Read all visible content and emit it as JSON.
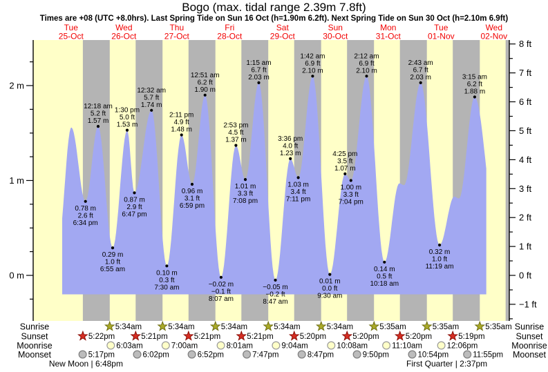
{
  "header": {
    "title": "Bogo (max. tidal range 2.39m 7.8ft)",
    "subtitle": "Times are +08 (UTC +8.0hrs). Last Spring Tide on Sun 16 Oct (h=1.90m 6.2ft). Next Spring Tide on Sun 30 Oct (h=2.10m 6.9ft)"
  },
  "days": [
    {
      "name": "Tue",
      "date": "25-Oct"
    },
    {
      "name": "Wed",
      "date": "26-Oct"
    },
    {
      "name": "Thu",
      "date": "27-Oct"
    },
    {
      "name": "Fri",
      "date": "28-Oct"
    },
    {
      "name": "Sat",
      "date": "29-Oct"
    },
    {
      "name": "Sun",
      "date": "30-Oct"
    },
    {
      "name": "Mon",
      "date": "31-Oct"
    },
    {
      "name": "Tue",
      "date": "01-Nov"
    },
    {
      "name": "Wed",
      "date": "02-Nov"
    }
  ],
  "chart_data": {
    "type": "area",
    "title": "Tide height curve, 25 Oct - 02 Nov",
    "x_unit": "days since 25 Oct 00:00 local (+08)",
    "y_axis_left": {
      "unit": "m",
      "ticks": [
        {
          "v": 2,
          "label": "2 m"
        },
        {
          "v": 1,
          "label": "1 m"
        },
        {
          "v": 0,
          "label": "0 m"
        }
      ],
      "minor_step": 0.25
    },
    "y_axis_right": {
      "unit": "ft",
      "tick_values": [
        8,
        7,
        6,
        5,
        4,
        3,
        2,
        1,
        0,
        -1
      ],
      "labels": [
        "8 ft",
        "7 ft",
        "6 ft",
        "5 ft",
        "4 ft",
        "3 ft",
        "2 ft",
        "1 ft",
        "0 ft",
        "−1 ft"
      ],
      "minor_step": 0.5
    },
    "tide_events": [
      {
        "date": "25-Oct",
        "type": "low",
        "t": 0.7736,
        "height_m": 0.78,
        "label_m": "0.78 m",
        "label_ft": "2.6 ft",
        "label_time": "6:34 pm"
      },
      {
        "date": "26-Oct",
        "type": "high",
        "t": 1.0125,
        "height_m": 1.57,
        "label_m": "1.57 m",
        "label_ft": "5.2 ft",
        "label_time": "12:18 am"
      },
      {
        "date": "26-Oct",
        "type": "low",
        "t": 1.2882,
        "height_m": 0.29,
        "label_m": "0.29 m",
        "label_ft": "1.0 ft",
        "label_time": "6:55 am"
      },
      {
        "date": "26-Oct",
        "type": "high",
        "t": 1.5625,
        "height_m": 1.53,
        "label_m": "1.53 m",
        "label_ft": "5.0 ft",
        "label_time": "1:30 pm"
      },
      {
        "date": "26-Oct",
        "type": "low",
        "t": 1.6993,
        "height_m": 0.87,
        "label_m": "0.87 m",
        "label_ft": "2.9 ft",
        "label_time": "6:47 pm"
      },
      {
        "date": "27-Oct",
        "type": "high",
        "t": 2.0222,
        "height_m": 1.74,
        "label_m": "1.74 m",
        "label_ft": "5.7 ft",
        "label_time": "12:32 am"
      },
      {
        "date": "27-Oct",
        "type": "low",
        "t": 2.3125,
        "height_m": 0.1,
        "label_m": "0.10 m",
        "label_ft": "0.3 ft",
        "label_time": "7:30 am"
      },
      {
        "date": "27-Oct",
        "type": "high",
        "t": 2.591,
        "height_m": 1.48,
        "label_m": "1.48 m",
        "label_ft": "4.9 ft",
        "label_time": "2:11 pm"
      },
      {
        "date": "27-Oct",
        "type": "low",
        "t": 2.791,
        "height_m": 0.96,
        "label_m": "0.96 m",
        "label_ft": "3.1 ft",
        "label_time": "6:59 pm"
      },
      {
        "date": "28-Oct",
        "type": "high",
        "t": 3.0354,
        "height_m": 1.9,
        "label_m": "1.90 m",
        "label_ft": "6.2 ft",
        "label_time": "12:51 am"
      },
      {
        "date": "28-Oct",
        "type": "low",
        "t": 3.3382,
        "height_m": -0.02,
        "label_m": "−0.02 m",
        "label_ft": "−0.1 ft",
        "label_time": "8:07 am"
      },
      {
        "date": "28-Oct",
        "type": "high",
        "t": 3.6201,
        "height_m": 1.37,
        "label_m": "1.37 m",
        "label_ft": "4.5 ft",
        "label_time": "2:53 pm"
      },
      {
        "date": "28-Oct",
        "type": "low",
        "t": 3.7972,
        "height_m": 1.01,
        "label_m": "1.01 m",
        "label_ft": "3.3 ft",
        "label_time": "7:08 pm"
      },
      {
        "date": "29-Oct",
        "type": "high",
        "t": 4.0521,
        "height_m": 2.03,
        "label_m": "2.03 m",
        "label_ft": "6.7 ft",
        "label_time": "1:15 am"
      },
      {
        "date": "29-Oct",
        "type": "low",
        "t": 4.366,
        "height_m": -0.05,
        "label_m": "−0.05 m",
        "label_ft": "−0.2 ft",
        "label_time": "8:47 am"
      },
      {
        "date": "29-Oct",
        "type": "high",
        "t": 4.65,
        "height_m": 1.23,
        "label_m": "1.23 m",
        "label_ft": "4.0 ft",
        "label_time": "3:36 pm"
      },
      {
        "date": "29-Oct",
        "type": "low",
        "t": 4.7993,
        "height_m": 1.03,
        "label_m": "1.03 m",
        "label_ft": "3.4 ft",
        "label_time": "7:11 pm"
      },
      {
        "date": "30-Oct",
        "type": "high",
        "t": 5.0708,
        "height_m": 2.1,
        "label_m": "2.10 m",
        "label_ft": "6.9 ft",
        "label_time": "1:42 am"
      },
      {
        "date": "30-Oct",
        "type": "low",
        "t": 5.3958,
        "height_m": 0.01,
        "label_m": "0.01 m",
        "label_ft": "0.0 ft",
        "label_time": "9:30 am"
      },
      {
        "date": "30-Oct",
        "type": "high",
        "t": 5.684,
        "height_m": 1.07,
        "label_m": "1.07 m",
        "label_ft": "3.5 ft",
        "label_time": "4:25 pm"
      },
      {
        "date": "30-Oct",
        "type": "low",
        "t": 5.7944,
        "height_m": 1.0,
        "label_m": "1.00 m",
        "label_ft": "3.3 ft",
        "label_time": "7:04 pm"
      },
      {
        "date": "31-Oct",
        "type": "high",
        "t": 6.0917,
        "height_m": 2.1,
        "label_m": "2.10 m",
        "label_ft": "6.9 ft",
        "label_time": "2:12 am"
      },
      {
        "date": "31-Oct",
        "type": "low",
        "t": 6.4292,
        "height_m": 0.14,
        "label_m": "0.14 m",
        "label_ft": "0.5 ft",
        "label_time": "10:18 am"
      },
      {
        "date": "01-Nov",
        "type": "high",
        "t": 7.1132,
        "height_m": 2.03,
        "label_m": "2.03 m",
        "label_ft": "6.7 ft",
        "label_time": "2:43 am"
      },
      {
        "date": "01-Nov",
        "type": "low",
        "t": 7.4715,
        "height_m": 0.32,
        "label_m": "0.32 m",
        "label_ft": "1.0 ft",
        "label_time": "11:19 am"
      },
      {
        "date": "02-Nov",
        "type": "high",
        "t": 8.1354,
        "height_m": 1.88,
        "label_m": "1.88 m",
        "label_ft": "6.2 ft",
        "label_time": "3:15 am"
      }
    ],
    "unlabeled_curve_points": [
      {
        "t": 0.255,
        "m": 0.33
      },
      {
        "t": 0.506,
        "m": 1.56
      },
      {
        "t": 6.71,
        "m": 0.97
      },
      {
        "t": 6.8,
        "m": 0.95
      },
      {
        "t": 7.75,
        "m": 0.83
      },
      {
        "t": 7.84,
        "m": 0.81
      },
      {
        "t": 8.55,
        "m": 0.5
      }
    ],
    "curve_t_range": [
      0.333,
      8.355
    ],
    "baseline_m": -0.2,
    "night_bands_t": [
      [
        0.7236,
        1.2319
      ],
      [
        1.7229,
        2.2319
      ],
      [
        2.7229,
        3.2319
      ],
      [
        3.7229,
        4.2319
      ],
      [
        4.7222,
        5.2319
      ],
      [
        5.7222,
        6.2326
      ],
      [
        6.7222,
        7.2326
      ],
      [
        7.7215,
        8.2326
      ],
      [
        8.7215,
        8.82
      ]
    ]
  },
  "astro": {
    "rows": [
      {
        "id": "sunrise",
        "label": "Sunrise",
        "icon": "sunrise-star-icon",
        "events": [
          {
            "time": "5:34am",
            "t": 1.2319
          },
          {
            "time": "5:34am",
            "t": 2.2319
          },
          {
            "time": "5:34am",
            "t": 3.2319
          },
          {
            "time": "5:34am",
            "t": 4.2319
          },
          {
            "time": "5:34am",
            "t": 5.2319
          },
          {
            "time": "5:35am",
            "t": 6.2326
          },
          {
            "time": "5:35am",
            "t": 7.2326
          },
          {
            "time": "5:35am",
            "t": 8.2326
          }
        ]
      },
      {
        "id": "sunset",
        "label": "Sunset",
        "icon": "sunset-star-icon",
        "events": [
          {
            "time": "5:22pm",
            "t": 0.7236
          },
          {
            "time": "5:21pm",
            "t": 1.7229
          },
          {
            "time": "5:21pm",
            "t": 2.7229
          },
          {
            "time": "5:21pm",
            "t": 3.7229
          },
          {
            "time": "5:20pm",
            "t": 4.7222
          },
          {
            "time": "5:20pm",
            "t": 5.7222
          },
          {
            "time": "5:20pm",
            "t": 6.7222
          },
          {
            "time": "5:19pm",
            "t": 7.7215
          }
        ]
      },
      {
        "id": "moonrise",
        "label": "Moonrise",
        "icon": "moonrise-circle-icon",
        "events": [
          {
            "time": "6:03am",
            "t": 1.2521
          },
          {
            "time": "7:00am",
            "t": 2.2917
          },
          {
            "time": "8:01am",
            "t": 3.334
          },
          {
            "time": "9:04am",
            "t": 4.3778
          },
          {
            "time": "10:08am",
            "t": 5.4222
          },
          {
            "time": "11:10am",
            "t": 6.4653
          },
          {
            "time": "12:06pm",
            "t": 7.5042
          }
        ]
      },
      {
        "id": "moonset",
        "label": "Moonset",
        "icon": "moonset-circle-icon",
        "events": [
          {
            "time": "5:17pm",
            "t": 0.7201
          },
          {
            "time": "6:02pm",
            "t": 1.7514
          },
          {
            "time": "6:52pm",
            "t": 2.7861
          },
          {
            "time": "7:47pm",
            "t": 3.8243
          },
          {
            "time": "8:47pm",
            "t": 4.866
          },
          {
            "time": "9:50pm",
            "t": 5.9097
          },
          {
            "time": "10:54pm",
            "t": 6.9542
          },
          {
            "time": "11:55pm",
            "t": 7.9965
          }
        ]
      }
    ],
    "moon_phases": [
      {
        "label": "New Moon | 6:48pm",
        "t": 0.7833
      },
      {
        "label": "First Quarter | 2:37pm",
        "t": 7.609
      }
    ]
  },
  "colors": {
    "day_bg": "#ffffc8",
    "night_bg": "#b4b4b4",
    "tide_fill": "#a2a8f2",
    "day_label": "#f20000",
    "text": "#000000",
    "sunrise_star": "#aaaa28",
    "sunrise_star_stroke": "#6e6e12",
    "sunset_star": "#d62d22",
    "sunset_star_stroke": "#8a0f08",
    "moonrise_fill": "#ffffc8",
    "moonrise_stroke": "#9a9a9a",
    "moonset_fill": "#bcbcbc",
    "moonset_stroke": "#7d7d7d"
  }
}
